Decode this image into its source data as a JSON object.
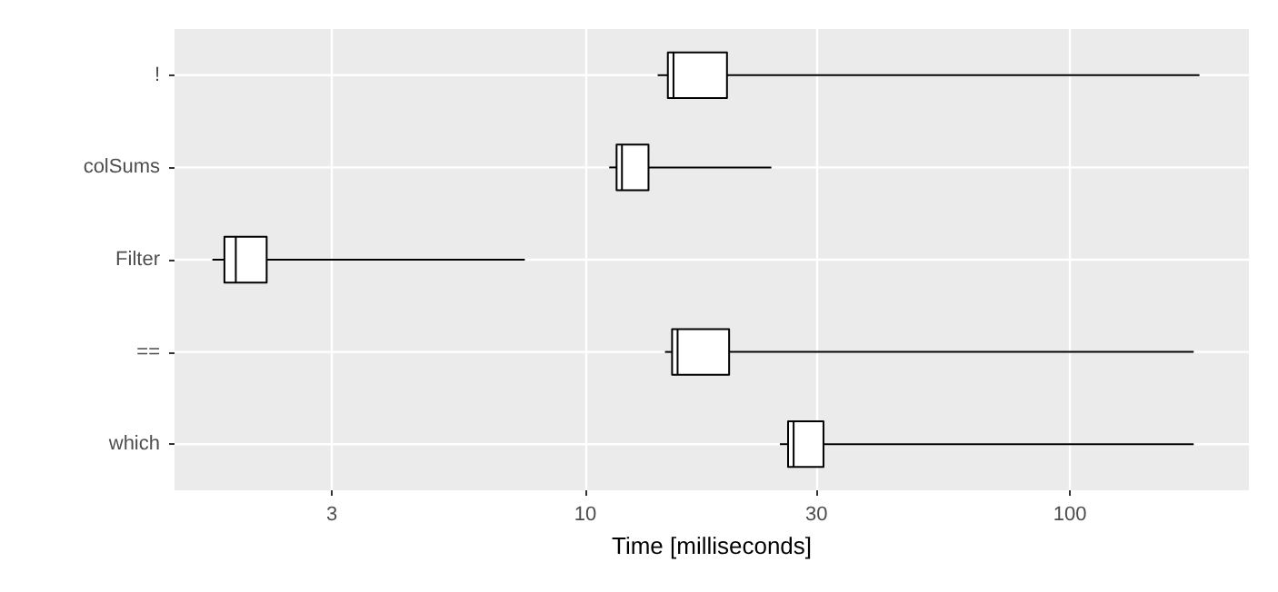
{
  "chart_data": {
    "type": "box",
    "orientation": "horizontal",
    "xlabel": "Time [milliseconds]",
    "categories": [
      "!",
      "colSums",
      "Filter",
      "==",
      "which"
    ],
    "boxes": [
      {
        "low": 14.1,
        "q1": 14.8,
        "median": 15.2,
        "q3": 19.6,
        "high": 185
      },
      {
        "low": 11.2,
        "q1": 11.6,
        "median": 11.9,
        "q3": 13.5,
        "high": 24.2
      },
      {
        "low": 1.7,
        "q1": 1.8,
        "median": 1.9,
        "q3": 2.2,
        "high": 7.5
      },
      {
        "low": 14.6,
        "q1": 15.1,
        "median": 15.5,
        "q3": 19.8,
        "high": 180
      },
      {
        "low": 25.2,
        "q1": 26.2,
        "median": 26.9,
        "q3": 31,
        "high": 180
      }
    ],
    "xlim": [
      1.42,
      234
    ],
    "xticks": [
      3,
      10,
      30,
      100
    ],
    "log": "x",
    "grid": true,
    "color": "#000000"
  }
}
